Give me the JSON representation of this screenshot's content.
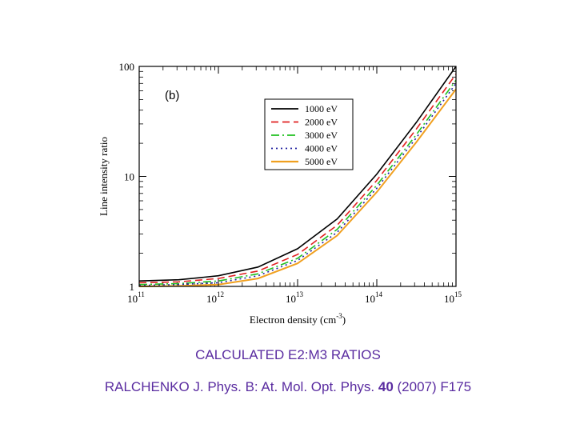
{
  "chart_data": {
    "type": "line",
    "panel_label": "(b)",
    "xlabel": "Electron density (cm",
    "xlabel_exp": "-3",
    "xlabel_end": ")",
    "ylabel": "Line intensity ratio",
    "xscale": "log",
    "yscale": "log",
    "xlim": [
      100000000000.0,
      1000000000000000.0
    ],
    "ylim": [
      1,
      100
    ],
    "x_ticks": [
      {
        "base": "10",
        "exp": "11"
      },
      {
        "base": "10",
        "exp": "12"
      },
      {
        "base": "10",
        "exp": "13"
      },
      {
        "base": "10",
        "exp": "14"
      },
      {
        "base": "10",
        "exp": "15"
      }
    ],
    "y_ticks": [
      "1",
      "10",
      "100"
    ],
    "legend_position": "top-right",
    "x": [
      100000000000.0,
      316000000000.0,
      1000000000000.0,
      3160000000000.0,
      10000000000000.0,
      31600000000000.0,
      100000000000000.0,
      316000000000000.0,
      1000000000000000.0
    ],
    "series": [
      {
        "name": "1000 eV",
        "color": "#000000",
        "dash": "solid",
        "values": [
          1.12,
          1.15,
          1.25,
          1.5,
          2.2,
          4.1,
          10.5,
          31,
          100
        ]
      },
      {
        "name": "2000 eV",
        "color": "#e02020",
        "dash": "dashed",
        "values": [
          1.08,
          1.1,
          1.18,
          1.38,
          1.95,
          3.6,
          9.2,
          27,
          85
        ]
      },
      {
        "name": "3000 eV",
        "color": "#20c020",
        "dash": "dashdot",
        "values": [
          1.04,
          1.06,
          1.12,
          1.3,
          1.8,
          3.3,
          8.3,
          24,
          75
        ]
      },
      {
        "name": "4000 eV",
        "color": "#2020a0",
        "dash": "dotted",
        "values": [
          1.02,
          1.04,
          1.08,
          1.25,
          1.72,
          3.1,
          7.8,
          22.5,
          70
        ]
      },
      {
        "name": "5000 eV",
        "color": "#f0a020",
        "dash": "solid",
        "values": [
          1.0,
          1.01,
          1.04,
          1.18,
          1.62,
          2.9,
          7.2,
          20.5,
          62
        ]
      }
    ]
  },
  "caption": {
    "line1": "CALCULATED E2:M3 RATIOS",
    "line2_prefix": "RALCHENKO J. Phys. B: At. Mol. Opt. Phys. ",
    "line2_bold": "40",
    "line2_suffix": " (2007) F175"
  }
}
